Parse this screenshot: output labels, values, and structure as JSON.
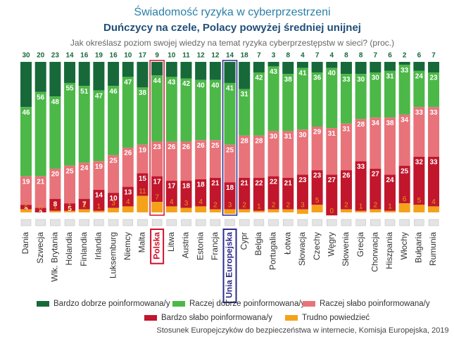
{
  "chart_data": {
    "type": "stacked_bar",
    "title": "Świadomość ryzyka w cyberprzestrzeni",
    "subtitle": "Duńczycy na czele, Polacy powyżej średniej unijnej",
    "question": "Jak określasz poziom swojej wiedzy na temat ryzyka cyberprzestępstw w sieci? (proc.)",
    "source": "Stosunek Europejczyków do bezpieczeństwa w internecie, Komisja Europejska, 2019",
    "categories": [
      "Dania",
      "Szwecja",
      "Wlk. Brytania",
      "Holandia",
      "Finlandia",
      "Irlandia",
      "Luksemburg",
      "Niemcy",
      "Malta",
      "Polska",
      "Litwa",
      "Austria",
      "Estonia",
      "Francja",
      "Unia Europejska",
      "Cypr",
      "Belgia",
      "Portugalia",
      "Łotwa",
      "Słowacja",
      "Czechy",
      "Węgry",
      "Słowenia",
      "Grecja",
      "Chorwacja",
      "Hiszpania",
      "Włochy",
      "Bułgaria",
      "Rumunia"
    ],
    "series": [
      {
        "name": "Bardzo dobrze poinformowana/y",
        "color": "#17693a",
        "values": [
          30,
          20,
          23,
          14,
          16,
          19,
          16,
          10,
          17,
          9,
          10,
          11,
          12,
          12,
          14,
          18,
          7,
          3,
          8,
          4,
          7,
          4,
          8,
          8,
          7,
          6,
          2,
          6,
          7
        ]
      },
      {
        "name": "Raczej dobrze poinformowana/y",
        "color": "#4cb848",
        "values": [
          46,
          56,
          48,
          55,
          51,
          47,
          46,
          47,
          38,
          44,
          43,
          42,
          40,
          40,
          41,
          31,
          42,
          43,
          38,
          41,
          36,
          40,
          33,
          30,
          30,
          31,
          33,
          24,
          23
        ]
      },
      {
        "name": "Raczej słabo poinformowana/y",
        "color": "#e8737a",
        "values": [
          19,
          21,
          20,
          25,
          24,
          19,
          25,
          26,
          19,
          23,
          26,
          26,
          26,
          25,
          25,
          28,
          28,
          30,
          31,
          30,
          29,
          31,
          31,
          28,
          34,
          38,
          34,
          33,
          33
        ]
      },
      {
        "name": "Bardzo słabo poinformowana/y",
        "color": "#c1162c",
        "values": [
          3,
          3,
          8,
          5,
          7,
          14,
          10,
          13,
          15,
          17,
          17,
          18,
          18,
          21,
          18,
          21,
          22,
          22,
          21,
          23,
          23,
          27,
          26,
          33,
          27,
          24,
          25,
          32,
          33
        ]
      },
      {
        "name": "Trudno powiedzieć",
        "color": "#f5a21b",
        "values": [
          2,
          0,
          1,
          1,
          2,
          1,
          3,
          4,
          11,
          7,
          4,
          3,
          4,
          2,
          3,
          2,
          1,
          2,
          2,
          3,
          5,
          0,
          2,
          1,
          2,
          1,
          6,
          5,
          4
        ]
      }
    ]
  }
}
